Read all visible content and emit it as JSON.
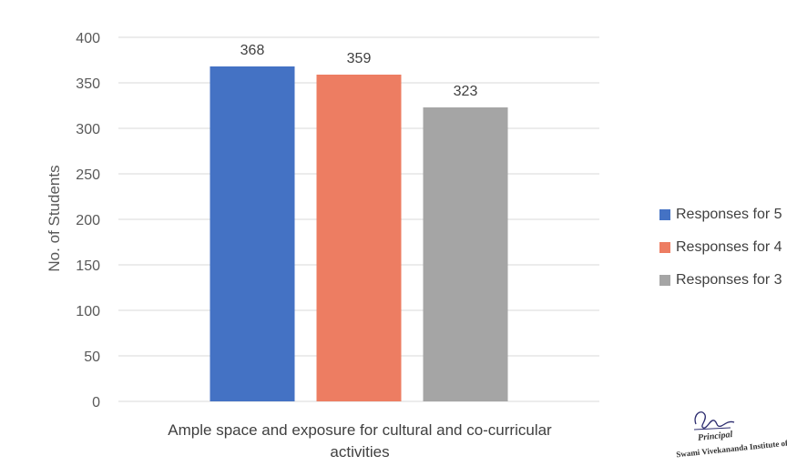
{
  "chart_data": {
    "type": "bar",
    "categories": [
      "Ample space and exposure for cultural and co-curricular activities"
    ],
    "series": [
      {
        "name": "Responses for 5",
        "values": [
          368
        ],
        "color": "#4472C4"
      },
      {
        "name": "Responses for 4",
        "values": [
          359
        ],
        "color": "#ED7D62"
      },
      {
        "name": "Responses for 3",
        "values": [
          323
        ],
        "color": "#A5A5A5"
      }
    ],
    "data_labels": [
      "368",
      "359",
      "323"
    ],
    "title": "",
    "xlabel": "",
    "ylabel": "No. of Students",
    "ylim": [
      0,
      400
    ],
    "yticks": [
      0,
      50,
      100,
      150,
      200,
      250,
      300,
      350,
      400
    ],
    "grid": true,
    "legend_position": "right"
  },
  "signature": {
    "role": "Principal",
    "org": "Swami Vivekananda Institute of"
  }
}
